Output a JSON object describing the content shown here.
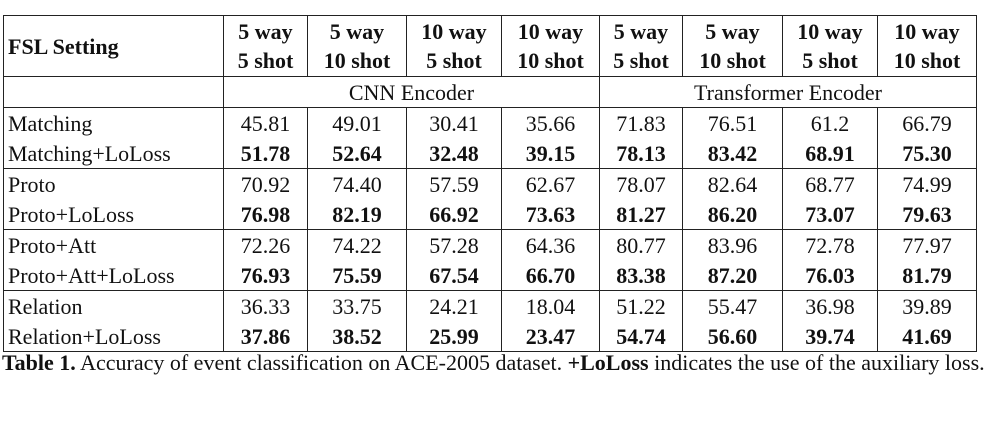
{
  "table": {
    "header": {
      "setting": "FSL Setting",
      "columns": [
        [
          "5 way",
          "5 shot"
        ],
        [
          "5 way",
          "10 shot"
        ],
        [
          "10 way",
          "5 shot"
        ],
        [
          "10 way",
          "10 shot"
        ],
        [
          "5 way",
          "5 shot"
        ],
        [
          "5 way",
          "10 shot"
        ],
        [
          "10 way",
          "5 shot"
        ],
        [
          "10 way",
          "10 shot"
        ]
      ],
      "groups": [
        "CNN Encoder",
        "Transformer Encoder"
      ]
    },
    "rows": [
      [
        "Matching",
        "45.81",
        "49.01",
        "30.41",
        "35.66",
        "71.83",
        "76.51",
        "61.2",
        "66.79"
      ],
      [
        "Matching+LoLoss",
        "51.78",
        "52.64",
        "32.48",
        "39.15",
        "78.13",
        "83.42",
        "68.91",
        "75.30"
      ],
      [
        "Proto",
        "70.92",
        "74.40",
        "57.59",
        "62.67",
        "78.07",
        "82.64",
        "68.77",
        "74.99"
      ],
      [
        "Proto+LoLoss",
        "76.98",
        "82.19",
        "66.92",
        "73.63",
        "81.27",
        "86.20",
        "73.07",
        "79.63"
      ],
      [
        "Proto+Att",
        "72.26",
        "74.22",
        "57.28",
        "64.36",
        "80.77",
        "83.96",
        "72.78",
        "77.97"
      ],
      [
        "Proto+Att+LoLoss",
        "76.93",
        "75.59",
        "67.54",
        "66.70",
        "83.38",
        "87.20",
        "76.03",
        "81.79"
      ],
      [
        "Relation",
        "36.33",
        "33.75",
        "24.21",
        "18.04",
        "51.22",
        "55.47",
        "36.98",
        "39.89"
      ],
      [
        "Relation+LoLoss",
        "37.86",
        "38.52",
        "25.99",
        "23.47",
        "54.74",
        "56.60",
        "39.74",
        "41.69"
      ]
    ]
  },
  "caption": {
    "label": "Table 1.",
    "text": "Accuracy of event classification on ACE-2005 dataset.",
    "emph": "+LoLoss",
    "rest": "indicates the use of the auxiliary loss."
  }
}
